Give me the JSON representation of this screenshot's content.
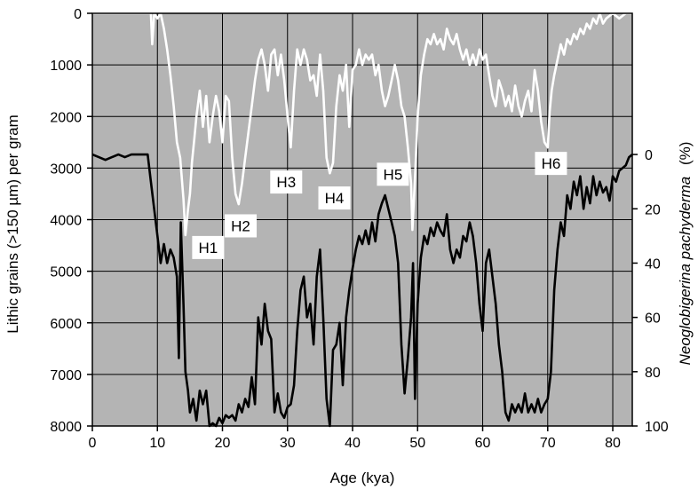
{
  "chart_data": {
    "type": "line",
    "xlabel": "Age (kya)",
    "ylabel_left": "Lithic grains (>150 µm) per gram",
    "ylabel_right_italic": "Neoglobigerina pachyderma",
    "ylabel_right_unit": "(%)",
    "xlim": [
      0,
      83
    ],
    "ylim_left": [
      8000,
      0
    ],
    "ylim_right": [
      100,
      -52
    ],
    "x_ticks": [
      0,
      10,
      20,
      30,
      40,
      50,
      60,
      70,
      80
    ],
    "y_left_ticks": [
      0,
      1000,
      2000,
      3000,
      4000,
      5000,
      6000,
      7000,
      8000
    ],
    "y_right_ticks": [
      0,
      20,
      40,
      60,
      80,
      100
    ],
    "grid": true,
    "plot_background": "#b4b4b4",
    "grid_color": "#000000",
    "series": [
      {
        "axis": "left",
        "color": "#ffffff",
        "points": [
          [
            0,
            0
          ],
          [
            5,
            0
          ],
          [
            9,
            0
          ],
          [
            9.2,
            600
          ],
          [
            9.5,
            0
          ],
          [
            10,
            100
          ],
          [
            10.5,
            0
          ],
          [
            11,
            300
          ],
          [
            11.5,
            700
          ],
          [
            12,
            1200
          ],
          [
            12.5,
            1800
          ],
          [
            13,
            2500
          ],
          [
            13.5,
            2800
          ],
          [
            14,
            3600
          ],
          [
            14.3,
            4300
          ],
          [
            14.7,
            3800
          ],
          [
            15,
            3500
          ],
          [
            15.3,
            2900
          ],
          [
            15.7,
            2400
          ],
          [
            16,
            2000
          ],
          [
            16.5,
            1500
          ],
          [
            17,
            2200
          ],
          [
            17.5,
            1600
          ],
          [
            18,
            2500
          ],
          [
            18.5,
            2000
          ],
          [
            19,
            1600
          ],
          [
            19.5,
            1900
          ],
          [
            20,
            2500
          ],
          [
            20.5,
            1600
          ],
          [
            21,
            1700
          ],
          [
            21.5,
            2800
          ],
          [
            22,
            3500
          ],
          [
            22.5,
            3700
          ],
          [
            23,
            3300
          ],
          [
            23.5,
            2800
          ],
          [
            24,
            2300
          ],
          [
            24.5,
            1800
          ],
          [
            25,
            1300
          ],
          [
            25.5,
            900
          ],
          [
            26,
            700
          ],
          [
            26.5,
            1000
          ],
          [
            27,
            1500
          ],
          [
            27.5,
            800
          ],
          [
            28,
            700
          ],
          [
            28.5,
            1200
          ],
          [
            29,
            800
          ],
          [
            29.5,
            1300
          ],
          [
            30,
            2000
          ],
          [
            30.5,
            2600
          ],
          [
            31,
            1500
          ],
          [
            31.5,
            700
          ],
          [
            32,
            1000
          ],
          [
            32.5,
            700
          ],
          [
            33,
            900
          ],
          [
            33.5,
            1300
          ],
          [
            34,
            1200
          ],
          [
            34.5,
            1600
          ],
          [
            35,
            800
          ],
          [
            35.5,
            1500
          ],
          [
            36,
            2800
          ],
          [
            36.5,
            3100
          ],
          [
            37,
            2900
          ],
          [
            37.5,
            1800
          ],
          [
            38,
            1200
          ],
          [
            38.5,
            1500
          ],
          [
            39,
            1000
          ],
          [
            39.5,
            2200
          ],
          [
            40,
            1100
          ],
          [
            40.5,
            1000
          ],
          [
            41,
            700
          ],
          [
            41.5,
            1000
          ],
          [
            42,
            800
          ],
          [
            42.5,
            900
          ],
          [
            43,
            800
          ],
          [
            43.5,
            1200
          ],
          [
            44,
            1000
          ],
          [
            44.5,
            1500
          ],
          [
            45,
            1800
          ],
          [
            45.5,
            1600
          ],
          [
            46,
            1300
          ],
          [
            46.5,
            1000
          ],
          [
            47,
            1300
          ],
          [
            47.5,
            1800
          ],
          [
            48,
            2000
          ],
          [
            48.5,
            2600
          ],
          [
            49,
            3300
          ],
          [
            49.2,
            4200
          ],
          [
            49.6,
            3200
          ],
          [
            50,
            2000
          ],
          [
            50.5,
            1200
          ],
          [
            51,
            800
          ],
          [
            51.5,
            500
          ],
          [
            52,
            600
          ],
          [
            52.5,
            400
          ],
          [
            53,
            600
          ],
          [
            53.5,
            500
          ],
          [
            54,
            700
          ],
          [
            54.5,
            300
          ],
          [
            55,
            500
          ],
          [
            55.5,
            600
          ],
          [
            56,
            400
          ],
          [
            56.5,
            700
          ],
          [
            57,
            900
          ],
          [
            57.5,
            700
          ],
          [
            58,
            1000
          ],
          [
            58.5,
            800
          ],
          [
            59,
            1000
          ],
          [
            59.5,
            700
          ],
          [
            60,
            900
          ],
          [
            60.5,
            800
          ],
          [
            61,
            1200
          ],
          [
            61.5,
            1600
          ],
          [
            62,
            1800
          ],
          [
            62.5,
            1300
          ],
          [
            63,
            1500
          ],
          [
            63.5,
            1800
          ],
          [
            64,
            1600
          ],
          [
            64.5,
            1900
          ],
          [
            65,
            1400
          ],
          [
            65.5,
            1800
          ],
          [
            66,
            2000
          ],
          [
            66.5,
            1700
          ],
          [
            67,
            1500
          ],
          [
            67.5,
            1900
          ],
          [
            68,
            1100
          ],
          [
            68.5,
            1500
          ],
          [
            69,
            2100
          ],
          [
            69.5,
            2500
          ],
          [
            70,
            2600
          ],
          [
            70.3,
            1900
          ],
          [
            70.6,
            1500
          ],
          [
            71,
            1200
          ],
          [
            71.5,
            900
          ],
          [
            72,
            600
          ],
          [
            72.5,
            800
          ],
          [
            73,
            500
          ],
          [
            73.5,
            600
          ],
          [
            74,
            400
          ],
          [
            74.5,
            500
          ],
          [
            75,
            300
          ],
          [
            75.5,
            400
          ],
          [
            76,
            200
          ],
          [
            76.5,
            300
          ],
          [
            77,
            100
          ],
          [
            77.5,
            200
          ],
          [
            78,
            0
          ],
          [
            78.5,
            200
          ],
          [
            79,
            100
          ],
          [
            80,
            0
          ],
          [
            81,
            100
          ],
          [
            82,
            0
          ],
          [
            83,
            0
          ]
        ]
      },
      {
        "axis": "right",
        "color": "#000000",
        "points": [
          [
            0,
            0
          ],
          [
            1,
            1
          ],
          [
            2,
            2
          ],
          [
            3,
            1
          ],
          [
            4,
            0
          ],
          [
            5,
            1
          ],
          [
            6,
            0
          ],
          [
            7,
            0
          ],
          [
            8,
            0
          ],
          [
            8.5,
            0
          ],
          [
            9,
            10
          ],
          [
            9.5,
            20
          ],
          [
            10,
            30
          ],
          [
            10.5,
            40
          ],
          [
            11,
            33
          ],
          [
            11.5,
            40
          ],
          [
            12,
            35
          ],
          [
            12.5,
            38
          ],
          [
            13,
            45
          ],
          [
            13.3,
            75
          ],
          [
            13.6,
            25
          ],
          [
            14,
            55
          ],
          [
            14.3,
            80
          ],
          [
            14.7,
            87
          ],
          [
            15,
            95
          ],
          [
            15.5,
            90
          ],
          [
            16,
            98
          ],
          [
            16.5,
            87
          ],
          [
            17,
            92
          ],
          [
            17.5,
            87
          ],
          [
            18,
            100
          ],
          [
            18.5,
            99
          ],
          [
            19,
            100
          ],
          [
            19.5,
            97
          ],
          [
            20,
            99
          ],
          [
            20.5,
            96
          ],
          [
            21,
            97
          ],
          [
            21.5,
            96
          ],
          [
            22,
            98
          ],
          [
            22.5,
            92
          ],
          [
            23,
            95
          ],
          [
            23.5,
            90
          ],
          [
            24,
            93
          ],
          [
            24.5,
            82
          ],
          [
            25,
            92
          ],
          [
            25.5,
            60
          ],
          [
            26,
            70
          ],
          [
            26.5,
            55
          ],
          [
            27,
            65
          ],
          [
            27.5,
            68
          ],
          [
            28,
            95
          ],
          [
            28.5,
            88
          ],
          [
            29,
            95
          ],
          [
            29.5,
            97
          ],
          [
            30,
            93
          ],
          [
            30.5,
            92
          ],
          [
            31,
            85
          ],
          [
            31.5,
            65
          ],
          [
            32,
            50
          ],
          [
            32.5,
            45
          ],
          [
            33,
            60
          ],
          [
            33.5,
            55
          ],
          [
            34,
            70
          ],
          [
            34.5,
            45
          ],
          [
            35,
            35
          ],
          [
            35.5,
            60
          ],
          [
            36,
            90
          ],
          [
            36.5,
            100
          ],
          [
            37,
            72
          ],
          [
            37.5,
            70
          ],
          [
            38,
            62
          ],
          [
            38.5,
            85
          ],
          [
            39,
            60
          ],
          [
            39.5,
            50
          ],
          [
            40,
            42
          ],
          [
            40.5,
            35
          ],
          [
            41,
            30
          ],
          [
            41.5,
            33
          ],
          [
            42,
            28
          ],
          [
            42.5,
            33
          ],
          [
            43,
            25
          ],
          [
            43.5,
            32
          ],
          [
            44,
            22
          ],
          [
            44.5,
            18
          ],
          [
            45,
            15
          ],
          [
            45.5,
            20
          ],
          [
            46,
            25
          ],
          [
            46.5,
            30
          ],
          [
            47,
            40
          ],
          [
            47.5,
            70
          ],
          [
            48,
            88
          ],
          [
            48.5,
            75
          ],
          [
            49,
            60
          ],
          [
            49.3,
            40
          ],
          [
            49.6,
            90
          ],
          [
            50,
            55
          ],
          [
            50.5,
            38
          ],
          [
            51,
            30
          ],
          [
            51.5,
            33
          ],
          [
            52,
            27
          ],
          [
            52.5,
            30
          ],
          [
            53,
            25
          ],
          [
            53.5,
            28
          ],
          [
            54,
            30
          ],
          [
            54.5,
            22
          ],
          [
            55,
            35
          ],
          [
            55.5,
            40
          ],
          [
            56,
            35
          ],
          [
            56.5,
            38
          ],
          [
            57,
            30
          ],
          [
            57.5,
            32
          ],
          [
            58,
            25
          ],
          [
            58.5,
            30
          ],
          [
            59,
            40
          ],
          [
            59.5,
            55
          ],
          [
            60,
            65
          ],
          [
            60.5,
            40
          ],
          [
            61,
            35
          ],
          [
            61.5,
            45
          ],
          [
            62,
            55
          ],
          [
            62.5,
            70
          ],
          [
            63,
            80
          ],
          [
            63.5,
            95
          ],
          [
            64,
            98
          ],
          [
            64.5,
            92
          ],
          [
            65,
            95
          ],
          [
            65.5,
            92
          ],
          [
            66,
            95
          ],
          [
            66.5,
            88
          ],
          [
            67,
            95
          ],
          [
            67.5,
            92
          ],
          [
            68,
            95
          ],
          [
            68.5,
            90
          ],
          [
            69,
            95
          ],
          [
            69.5,
            92
          ],
          [
            70,
            90
          ],
          [
            70.5,
            80
          ],
          [
            71,
            50
          ],
          [
            71.5,
            35
          ],
          [
            72,
            25
          ],
          [
            72.5,
            30
          ],
          [
            73,
            15
          ],
          [
            73.5,
            20
          ],
          [
            74,
            10
          ],
          [
            74.5,
            15
          ],
          [
            75,
            8
          ],
          [
            75.5,
            20
          ],
          [
            76,
            12
          ],
          [
            76.5,
            18
          ],
          [
            77,
            8
          ],
          [
            77.5,
            15
          ],
          [
            78,
            10
          ],
          [
            78.5,
            14
          ],
          [
            79,
            12
          ],
          [
            79.5,
            17
          ],
          [
            80,
            8
          ],
          [
            80.5,
            10
          ],
          [
            81,
            6
          ],
          [
            81.5,
            5
          ],
          [
            82,
            4
          ],
          [
            82.5,
            1
          ],
          [
            83,
            0
          ]
        ]
      }
    ],
    "annotations": [
      {
        "text": "H1",
        "x": 17.8,
        "y_left": 4540
      },
      {
        "text": "H2",
        "x": 22.8,
        "y_left": 4120
      },
      {
        "text": "H3",
        "x": 29.8,
        "y_left": 3270
      },
      {
        "text": "H4",
        "x": 37.2,
        "y_left": 3580
      },
      {
        "text": "H5",
        "x": 46.2,
        "y_left": 3120
      },
      {
        "text": "H6",
        "x": 70.5,
        "y_left": 2910
      }
    ]
  }
}
